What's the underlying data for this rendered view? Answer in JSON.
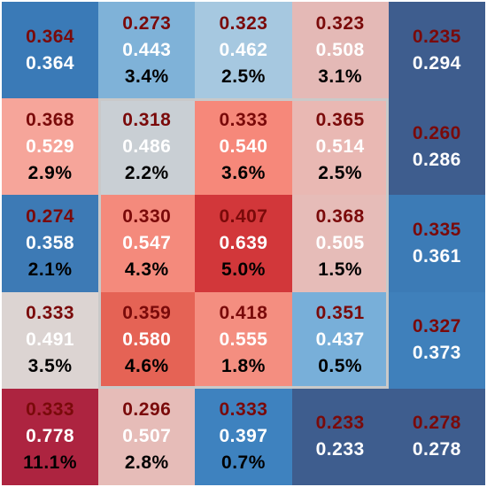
{
  "chart_data": {
    "type": "heatmap",
    "rows": 5,
    "cols": 5,
    "cells": [
      [
        {
          "v1": "0.364",
          "v2": "0.364",
          "v3": "",
          "bg": "#3a7ab7"
        },
        {
          "v1": "0.273",
          "v2": "0.443",
          "v3": "3.4%",
          "bg": "#7fb2d8"
        },
        {
          "v1": "0.323",
          "v2": "0.462",
          "v3": "2.5%",
          "bg": "#a6c8e0"
        },
        {
          "v1": "0.323",
          "v2": "0.508",
          "v3": "3.1%",
          "bg": "#e4b9b6"
        },
        {
          "v1": "0.235",
          "v2": "0.294",
          "v3": "",
          "bg": "#3e5d8e"
        }
      ],
      [
        {
          "v1": "0.368",
          "v2": "0.529",
          "v3": "2.9%",
          "bg": "#f6a59a"
        },
        {
          "v1": "0.318",
          "v2": "0.486",
          "v3": "2.2%",
          "bg": "#c9cfd4"
        },
        {
          "v1": "0.333",
          "v2": "0.540",
          "v3": "3.6%",
          "bg": "#f6887a"
        },
        {
          "v1": "0.365",
          "v2": "0.514",
          "v3": "2.5%",
          "bg": "#e9b8b3"
        },
        {
          "v1": "0.260",
          "v2": "0.286",
          "v3": "",
          "bg": "#3e5d8e"
        }
      ],
      [
        {
          "v1": "0.274",
          "v2": "0.358",
          "v3": "2.1%",
          "bg": "#3d7ab5"
        },
        {
          "v1": "0.330",
          "v2": "0.547",
          "v3": "4.3%",
          "bg": "#f48a7c"
        },
        {
          "v1": "0.407",
          "v2": "0.639",
          "v3": "5.0%",
          "bg": "#d2373a"
        },
        {
          "v1": "0.368",
          "v2": "0.505",
          "v3": "1.5%",
          "bg": "#e6bcb8"
        },
        {
          "v1": "0.335",
          "v2": "0.361",
          "v3": "",
          "bg": "#3c7bb6"
        }
      ],
      [
        {
          "v1": "0.333",
          "v2": "0.491",
          "v3": "3.5%",
          "bg": "#dcd4d2"
        },
        {
          "v1": "0.359",
          "v2": "0.580",
          "v3": "4.6%",
          "bg": "#e56355"
        },
        {
          "v1": "0.418",
          "v2": "0.555",
          "v3": "1.8%",
          "bg": "#f48e80"
        },
        {
          "v1": "0.351",
          "v2": "0.437",
          "v3": "0.5%",
          "bg": "#78afd9"
        },
        {
          "v1": "0.327",
          "v2": "0.373",
          "v3": "",
          "bg": "#3f80bb"
        }
      ],
      [
        {
          "v1": "0.333",
          "v2": "0.778",
          "v3": "11.1%",
          "bg": "#ad2440"
        },
        {
          "v1": "0.296",
          "v2": "0.507",
          "v3": "2.8%",
          "bg": "#e6bcb8"
        },
        {
          "v1": "0.333",
          "v2": "0.397",
          "v3": "0.7%",
          "bg": "#3e82bf"
        },
        {
          "v1": "0.233",
          "v2": "0.233",
          "v3": "",
          "bg": "#3e5d8e"
        },
        {
          "v1": "0.278",
          "v2": "0.278",
          "v3": "",
          "bg": "#3e5d8e"
        }
      ]
    ],
    "dark_text_cells": [
      [
        0,
        1
      ],
      [
        0,
        2
      ],
      [
        0,
        3
      ],
      [
        1,
        0
      ],
      [
        1,
        1
      ],
      [
        1,
        2
      ],
      [
        1,
        3
      ],
      [
        2,
        0
      ],
      [
        2,
        1
      ],
      [
        2,
        2
      ],
      [
        2,
        3
      ],
      [
        3,
        0
      ],
      [
        3,
        1
      ],
      [
        3,
        2
      ],
      [
        3,
        3
      ],
      [
        4,
        0
      ],
      [
        4,
        1
      ],
      [
        4,
        2
      ]
    ],
    "strike_zone": {
      "rows": [
        1,
        3
      ],
      "cols": [
        1,
        3
      ],
      "color": "#c9c9c9"
    }
  }
}
